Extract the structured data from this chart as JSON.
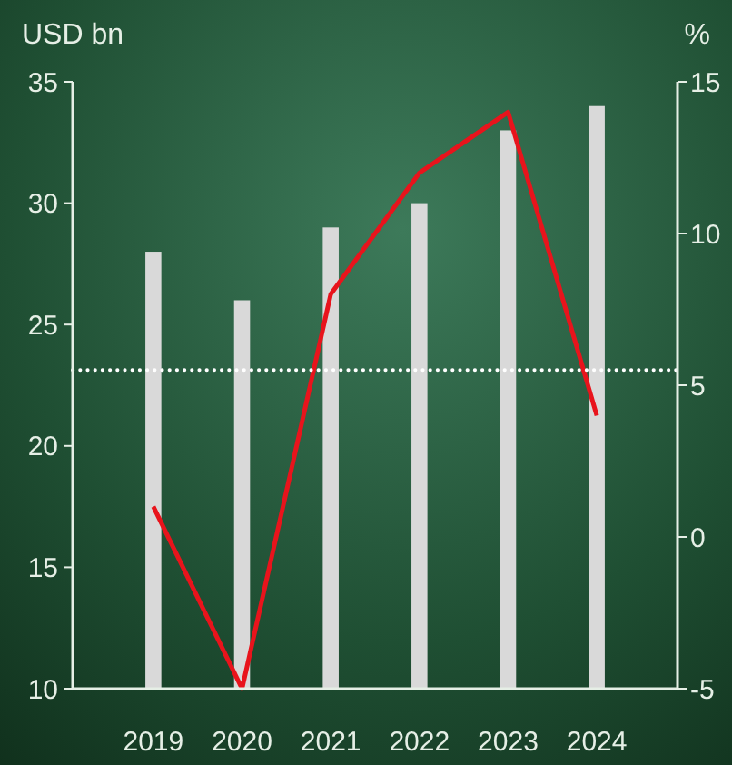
{
  "chart_data": {
    "type": "bar",
    "ylabel": "USD bn",
    "y2label": "%",
    "categories": [
      "2019",
      "2020",
      "2021",
      "2022",
      "2023",
      "2024"
    ],
    "series": [
      {
        "color": "#d9d9d9",
        "values": [
          28,
          26,
          29,
          30,
          33,
          34
        ]
      },
      {
        "type": "line",
        "axis": "y2",
        "color": "#e8141c",
        "values": [
          1,
          -5,
          8,
          12,
          14,
          4
        ]
      }
    ],
    "ylim": [
      10,
      35
    ],
    "yticks": [
      10,
      15,
      20,
      25,
      30,
      35
    ],
    "y2lim": [
      -5,
      15
    ],
    "y2ticks": [
      -5,
      0,
      5,
      10,
      15
    ],
    "ref_lines": [
      {
        "axis": "y2",
        "value": 5.5,
        "color": "#ffffff",
        "line_style": "dotted"
      }
    ],
    "grid": false,
    "marker": "none",
    "line_style": "solid"
  }
}
